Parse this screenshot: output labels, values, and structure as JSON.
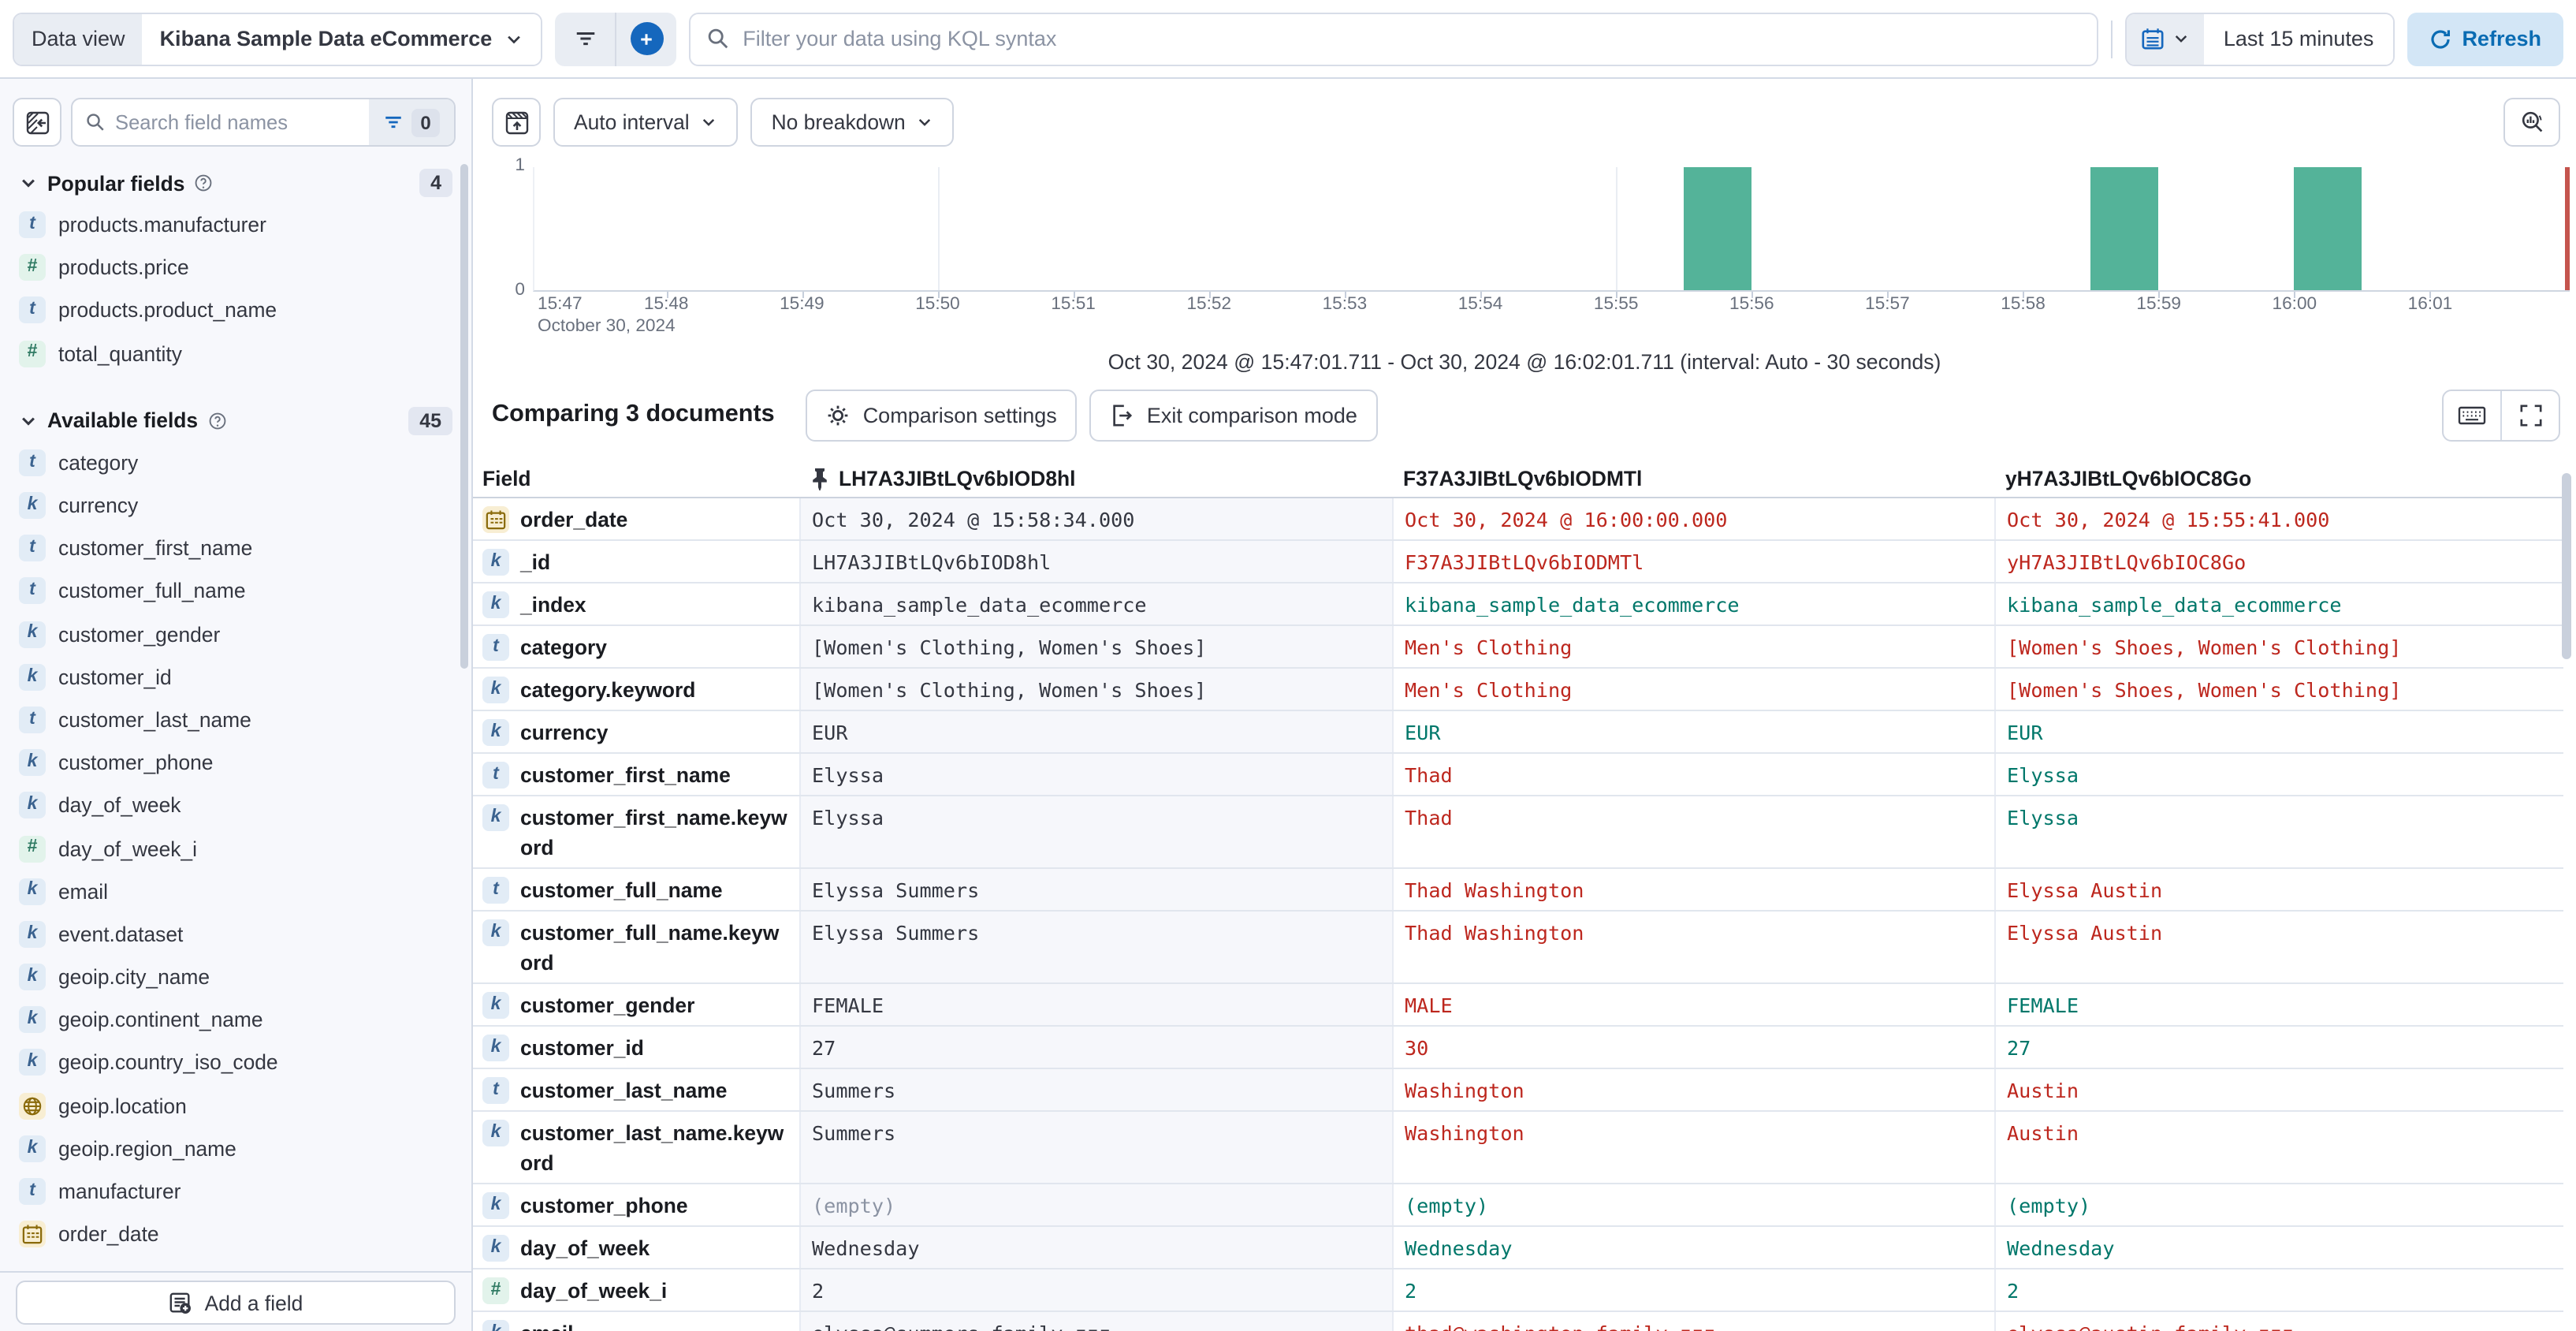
{
  "top_bar": {
    "data_view_label": "Data view",
    "data_view_value": "Kibana Sample Data eCommerce",
    "query_placeholder": "Filter your data using KQL syntax",
    "time_range": "Last 15 minutes",
    "refresh_label": "Refresh"
  },
  "sidebar": {
    "search_placeholder": "Search field names",
    "filter_count": "0",
    "sections": [
      {
        "title": "Popular fields",
        "count": "4",
        "items": [
          {
            "type": "text",
            "name": "products.manufacturer"
          },
          {
            "type": "number",
            "name": "products.price"
          },
          {
            "type": "text",
            "name": "products.product_name"
          },
          {
            "type": "number",
            "name": "total_quantity"
          }
        ]
      },
      {
        "title": "Available fields",
        "count": "45",
        "items": [
          {
            "type": "text",
            "name": "category"
          },
          {
            "type": "keyword",
            "name": "currency"
          },
          {
            "type": "text",
            "name": "customer_first_name"
          },
          {
            "type": "text",
            "name": "customer_full_name"
          },
          {
            "type": "keyword",
            "name": "customer_gender"
          },
          {
            "type": "keyword",
            "name": "customer_id"
          },
          {
            "type": "text",
            "name": "customer_last_name"
          },
          {
            "type": "keyword",
            "name": "customer_phone"
          },
          {
            "type": "keyword",
            "name": "day_of_week"
          },
          {
            "type": "number",
            "name": "day_of_week_i"
          },
          {
            "type": "keyword",
            "name": "email"
          },
          {
            "type": "keyword",
            "name": "event.dataset"
          },
          {
            "type": "keyword",
            "name": "geoip.city_name"
          },
          {
            "type": "keyword",
            "name": "geoip.continent_name"
          },
          {
            "type": "keyword",
            "name": "geoip.country_iso_code"
          },
          {
            "type": "geo",
            "name": "geoip.location"
          },
          {
            "type": "keyword",
            "name": "geoip.region_name"
          },
          {
            "type": "text",
            "name": "manufacturer"
          },
          {
            "type": "date",
            "name": "order_date"
          }
        ]
      }
    ],
    "add_field_label": "Add a field"
  },
  "histogram": {
    "interval_label": "Auto interval",
    "breakdown_label": "No breakdown",
    "caption": "Oct 30, 2024 @ 15:47:01.711 - Oct 30, 2024 @ 16:02:01.711 (interval: Auto - 30 seconds)"
  },
  "chart_data": {
    "type": "bar",
    "title": "Document count histogram",
    "x_axis": {
      "range": [
        "15:47:01.711",
        "16:02:01.711"
      ],
      "range_seconds": 900,
      "ticks": [
        "15:47",
        "15:48",
        "15:49",
        "15:50",
        "15:51",
        "15:52",
        "15:53",
        "15:54",
        "15:55",
        "15:56",
        "15:57",
        "15:58",
        "15:59",
        "16:00",
        "16:01"
      ],
      "date_label": "October 30, 2024"
    },
    "y_axis": {
      "ticks": [
        "1",
        "0"
      ],
      "ylim": [
        0,
        1
      ]
    },
    "interval_seconds": 30,
    "bars": [
      {
        "time": "15:55:30",
        "offset_s": 508.289,
        "count": 1
      },
      {
        "time": "15:58:30",
        "offset_s": 688.289,
        "count": 1
      },
      {
        "time": "16:00:00",
        "offset_s": 778.289,
        "count": 1
      }
    ],
    "gridline_offsets_s": [
      178.289,
      478.289,
      778.289
    ],
    "annotation": {
      "type": "current-time",
      "offset_s": 900
    },
    "bar_color": "#54b399"
  },
  "comparison": {
    "title": "Comparing 3 documents",
    "settings_label": "Comparison settings",
    "exit_label": "Exit comparison mode"
  },
  "table": {
    "field_header": "Field",
    "doc_ids": [
      "LH7A3JIBtLQv6bIOD8hl",
      "F37A3JIBtLQv6bIODMTl",
      "yH7A3JIBtLQv6bIOC8Go"
    ],
    "rows": [
      {
        "type": "date",
        "field": "order_date",
        "base": "Oct 30, 2024 @ 15:58:34.000",
        "comp": [
          {
            "v": "Oct 30, 2024 @ 16:00:00.000",
            "s": "diff"
          },
          {
            "v": "Oct 30, 2024 @ 15:55:41.000",
            "s": "diff"
          }
        ]
      },
      {
        "type": "keyword",
        "field": "_id",
        "base": "LH7A3JIBtLQv6bIOD8hl",
        "comp": [
          {
            "v": "F37A3JIBtLQv6bIODMTl",
            "s": "diff"
          },
          {
            "v": "yH7A3JIBtLQv6bIOC8Go",
            "s": "diff"
          }
        ]
      },
      {
        "type": "keyword",
        "field": "_index",
        "base": "kibana_sample_data_ecommerce",
        "comp": [
          {
            "v": "kibana_sample_data_ecommerce",
            "s": "same"
          },
          {
            "v": "kibana_sample_data_ecommerce",
            "s": "same"
          }
        ]
      },
      {
        "type": "text",
        "field": "category",
        "base": "[Women's Clothing, Women's Shoes]",
        "comp": [
          {
            "v": "Men's Clothing",
            "s": "diff"
          },
          {
            "v": "[Women's Shoes, Women's Clothing]",
            "s": "diff"
          }
        ]
      },
      {
        "type": "keyword",
        "field": "category.keyword",
        "base": "[Women's Clothing, Women's Shoes]",
        "comp": [
          {
            "v": "Men's Clothing",
            "s": "diff"
          },
          {
            "v": "[Women's Shoes, Women's Clothing]",
            "s": "diff"
          }
        ]
      },
      {
        "type": "keyword",
        "field": "currency",
        "base": "EUR",
        "comp": [
          {
            "v": "EUR",
            "s": "same"
          },
          {
            "v": "EUR",
            "s": "same"
          }
        ]
      },
      {
        "type": "text",
        "field": "customer_first_name",
        "base": "Elyssa",
        "comp": [
          {
            "v": "Thad",
            "s": "diff"
          },
          {
            "v": "Elyssa",
            "s": "same"
          }
        ]
      },
      {
        "type": "keyword",
        "field": "customer_first_name.keyword",
        "base": "Elyssa",
        "comp": [
          {
            "v": "Thad",
            "s": "diff"
          },
          {
            "v": "Elyssa",
            "s": "same"
          }
        ]
      },
      {
        "type": "text",
        "field": "customer_full_name",
        "base": "Elyssa Summers",
        "comp": [
          {
            "v": "Thad Washington",
            "s": "diff"
          },
          {
            "v": "Elyssa Austin",
            "s": "diff"
          }
        ]
      },
      {
        "type": "keyword",
        "field": "customer_full_name.keyword",
        "base": "Elyssa Summers",
        "comp": [
          {
            "v": "Thad Washington",
            "s": "diff"
          },
          {
            "v": "Elyssa Austin",
            "s": "diff"
          }
        ]
      },
      {
        "type": "keyword",
        "field": "customer_gender",
        "base": "FEMALE",
        "comp": [
          {
            "v": "MALE",
            "s": "diff"
          },
          {
            "v": "FEMALE",
            "s": "same"
          }
        ]
      },
      {
        "type": "keyword",
        "field": "customer_id",
        "base": "27",
        "comp": [
          {
            "v": "30",
            "s": "diff"
          },
          {
            "v": "27",
            "s": "same"
          }
        ]
      },
      {
        "type": "text",
        "field": "customer_last_name",
        "base": "Summers",
        "comp": [
          {
            "v": "Washington",
            "s": "diff"
          },
          {
            "v": "Austin",
            "s": "diff"
          }
        ]
      },
      {
        "type": "keyword",
        "field": "customer_last_name.keyword",
        "base": "Summers",
        "comp": [
          {
            "v": "Washington",
            "s": "diff"
          },
          {
            "v": "Austin",
            "s": "diff"
          }
        ]
      },
      {
        "type": "keyword",
        "field": "customer_phone",
        "base": "(empty)",
        "comp": [
          {
            "v": "(empty)",
            "s": "same"
          },
          {
            "v": "(empty)",
            "s": "same"
          }
        ]
      },
      {
        "type": "keyword",
        "field": "day_of_week",
        "base": "Wednesday",
        "comp": [
          {
            "v": "Wednesday",
            "s": "same"
          },
          {
            "v": "Wednesday",
            "s": "same"
          }
        ]
      },
      {
        "type": "number",
        "field": "day_of_week_i",
        "base": "2",
        "comp": [
          {
            "v": "2",
            "s": "same"
          },
          {
            "v": "2",
            "s": "same"
          }
        ]
      },
      {
        "type": "keyword",
        "field": "email",
        "base": "elyssa@summers-family.zzz",
        "comp": [
          {
            "v": "thad@washington-family.zzz",
            "s": "diff"
          },
          {
            "v": "elyssa@austin-family.zzz",
            "s": "diff"
          }
        ]
      }
    ]
  },
  "tokens": {
    "text": "t",
    "keyword": "k",
    "number": "#"
  },
  "colors": {
    "diff": "#bd271e",
    "same": "#00776a",
    "bar": "#54b399",
    "annotation": "#c4544d",
    "primary": "#1567bd"
  }
}
